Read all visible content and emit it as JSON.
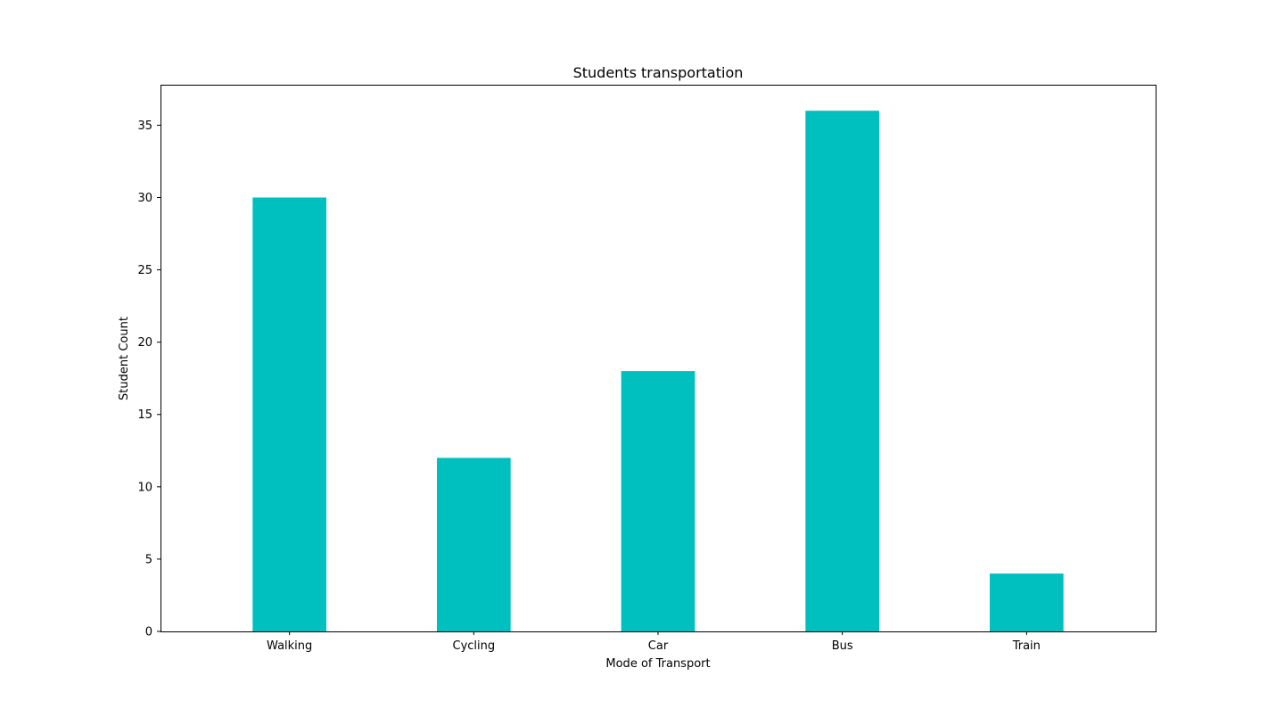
{
  "chart_data": {
    "type": "bar",
    "title": "Students transportation",
    "xlabel": "Mode of Transport",
    "ylabel": "Student Count",
    "categories": [
      "Walking",
      "Cycling",
      "Car",
      "Bus",
      "Train"
    ],
    "values": [
      30,
      12,
      18,
      36,
      4
    ],
    "ylim": [
      0,
      37.8
    ],
    "yticks": [
      0,
      5,
      10,
      15,
      20,
      25,
      30,
      35
    ],
    "grid": false,
    "legend": "none",
    "bar_color": "#00bfbf",
    "axis_color": "#000000"
  }
}
